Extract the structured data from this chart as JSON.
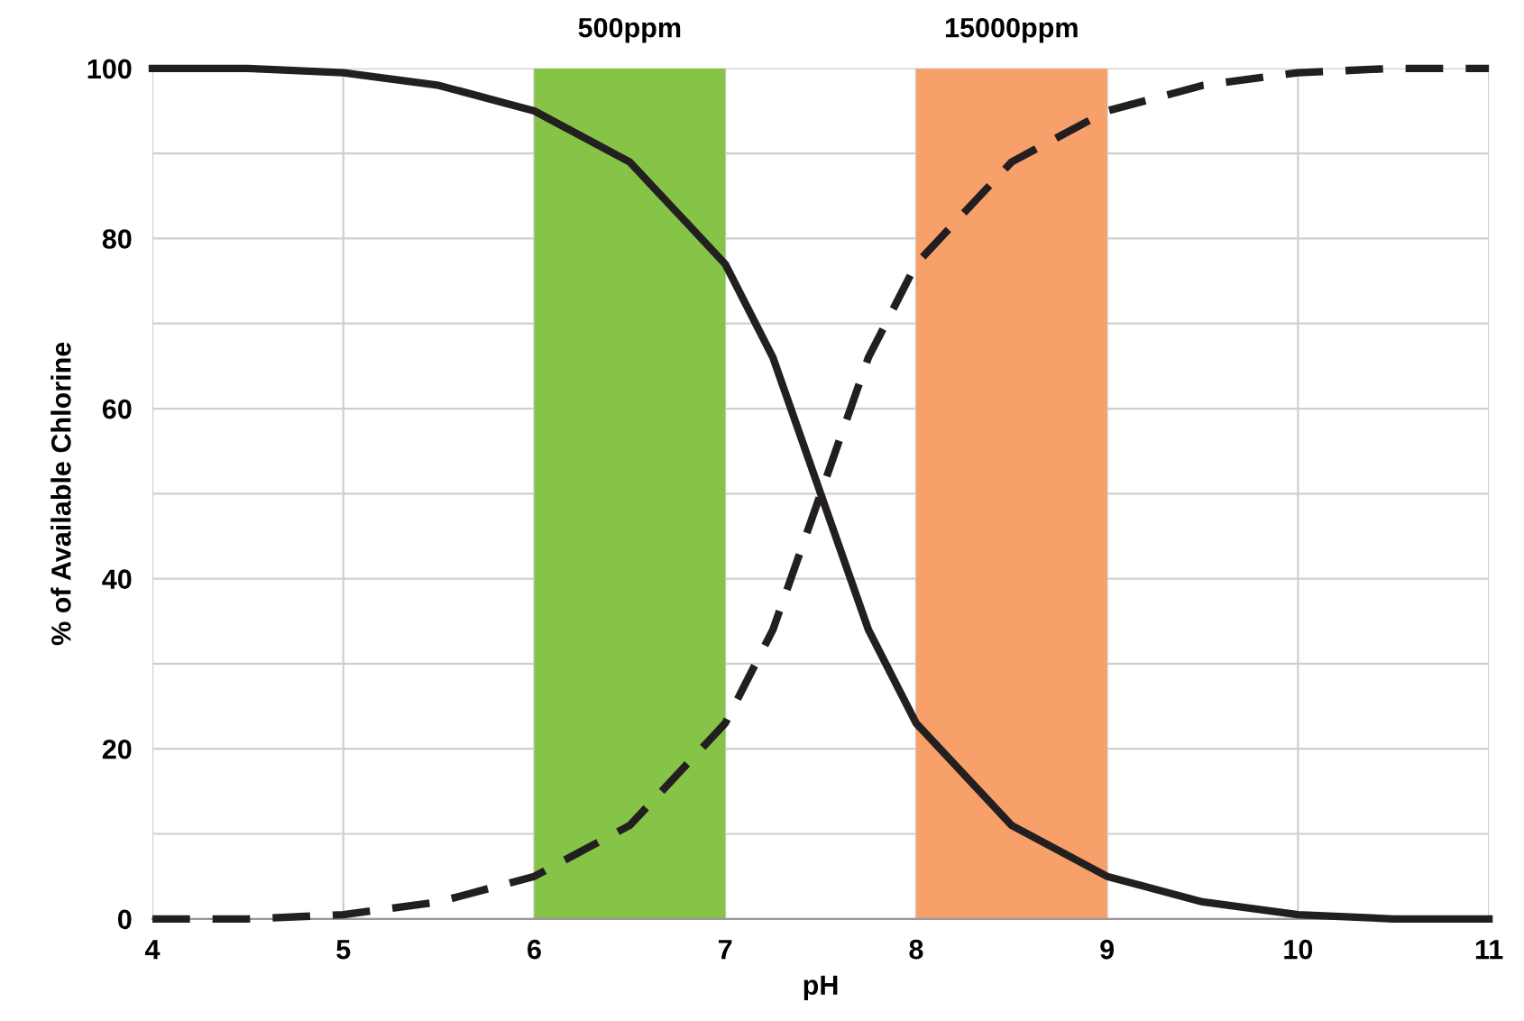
{
  "chart_data": {
    "type": "line",
    "xlabel": "pH",
    "ylabel": "% of Available Chlorine",
    "xlim": [
      4,
      11
    ],
    "xticks": [
      4,
      5,
      6,
      7,
      8,
      9,
      10,
      11
    ],
    "ylim": [
      0,
      100
    ],
    "yticks": [
      0,
      {
        "value": 10,
        "label": null
      },
      20,
      {
        "value": 30,
        "label": null
      },
      40,
      {
        "value": 50,
        "label": null
      },
      60,
      {
        "value": 70,
        "label": null
      },
      80,
      {
        "value": 90,
        "label": null
      },
      100
    ],
    "grid": true,
    "series": [
      {
        "color": "#231f20",
        "line_style": "solid",
        "x": [
          4,
          4.5,
          5,
          5.5,
          6,
          6.5,
          7,
          7.25,
          7.5,
          7.75,
          8,
          8.5,
          9,
          9.5,
          10,
          10.5,
          11
        ],
        "values": [
          100,
          100,
          99.5,
          98,
          95,
          89,
          77,
          66,
          50,
          34,
          23,
          11,
          5,
          2,
          0.5,
          0,
          0
        ]
      },
      {
        "color": "#231f20",
        "line_style": "dashed",
        "x": [
          4,
          4.5,
          5,
          5.5,
          6,
          6.5,
          7,
          7.25,
          7.5,
          7.75,
          8,
          8.5,
          9,
          9.5,
          10,
          10.5,
          11
        ],
        "values": [
          0,
          0,
          0.5,
          2,
          5,
          11,
          23,
          34,
          50,
          66,
          77,
          89,
          95,
          98,
          99.5,
          100,
          100
        ]
      }
    ],
    "bands": [
      {
        "axis": "x",
        "from": 6,
        "to": 7,
        "label": "500ppm",
        "color": "#86c447"
      },
      {
        "axis": "x",
        "from": 8,
        "to": 9,
        "label": "15000ppm",
        "color": "#f7a06a"
      }
    ]
  }
}
